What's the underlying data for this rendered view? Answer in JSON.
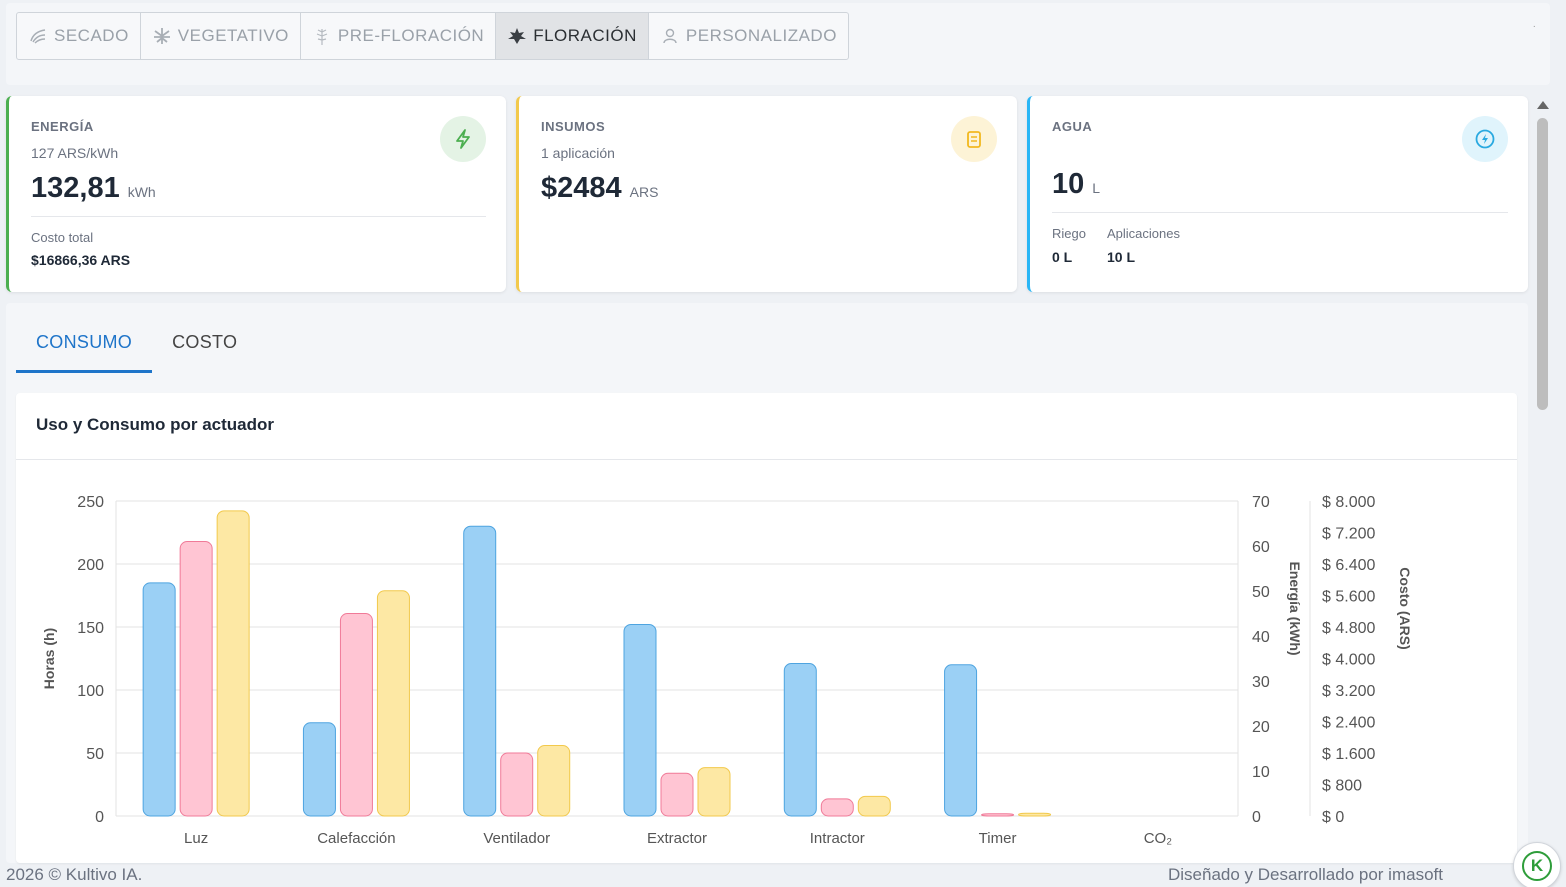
{
  "stages": [
    {
      "label": "SECADO",
      "icon": "drying-icon",
      "active": false
    },
    {
      "label": "VEGETATIVO",
      "icon": "leaf-icon",
      "active": false
    },
    {
      "label": "PRE-FLORACIÓN",
      "icon": "sprout-icon",
      "active": false
    },
    {
      "label": "FLORACIÓN",
      "icon": "flower-icon",
      "active": true
    },
    {
      "label": "PERSONALIZADO",
      "icon": "user-icon",
      "active": false
    }
  ],
  "stage_dot": "·",
  "cards": {
    "energy": {
      "label": "ENERGÍA",
      "rate": "127 ARS/kWh",
      "value": "132,81",
      "unit": "kWh",
      "total_label": "Costo total",
      "total_value": "$16866,36 ARS",
      "accent": "#4caf50"
    },
    "supplies": {
      "label": "INSUMOS",
      "sub": "1 aplicación",
      "value": "$2484",
      "unit": "ARS",
      "accent": "#f2c94c"
    },
    "water": {
      "label": "AGUA",
      "value": "10",
      "unit": "L",
      "riego_label": "Riego",
      "riego_value": "0 L",
      "apps_label": "Aplicaciones",
      "apps_value": "10 L",
      "accent": "#29b6f6"
    }
  },
  "main_tabs": [
    {
      "label": "CONSUMO",
      "active": true
    },
    {
      "label": "COSTO",
      "active": false
    }
  ],
  "chart_title": "Uso y Consumo por actuador",
  "chart_data": {
    "type": "bar",
    "title": "Uso y Consumo por actuador",
    "categories": [
      "Luz",
      "Calefacción",
      "Ventilador",
      "Extractor",
      "Intractor",
      "Timer",
      "CO₂"
    ],
    "series": [
      {
        "axis": "hours",
        "values": [
          185,
          74,
          230,
          152,
          121,
          120,
          0
        ],
        "color": "#9bd0f5",
        "stroke": "#4ea4e0"
      },
      {
        "axis": "energy",
        "values": [
          61,
          45,
          14,
          9.5,
          3.8,
          0.5,
          0
        ],
        "color": "#ffc5d3",
        "stroke": "#f07a98"
      },
      {
        "axis": "cost",
        "values": [
          7750,
          5720,
          1790,
          1230,
          500,
          70,
          0
        ],
        "color": "#fde8a4",
        "stroke": "#f2c94c"
      }
    ],
    "axes": {
      "hours": {
        "label": "Horas (h)",
        "ticks": [
          "250",
          "200",
          "150",
          "100",
          "50",
          "0"
        ],
        "max": 250
      },
      "energy": {
        "label": "Energía (kWh)",
        "ticks": [
          "70",
          "60",
          "50",
          "40",
          "30",
          "20",
          "10",
          "0"
        ],
        "max": 70
      },
      "cost": {
        "label": "Costo (ARS)",
        "ticks": [
          "$ 8.000",
          "$ 7.200",
          "$ 6.400",
          "$ 5.600",
          "$ 4.800",
          "$ 4.000",
          "$ 3.200",
          "$ 2.400",
          "$ 1.600",
          "$ 800",
          "$ 0"
        ],
        "max": 8000
      }
    },
    "grid": true
  },
  "footer": {
    "copyright": "2026 © Kultivo IA.",
    "credits": "Diseñado y Desarrollado por imasoft",
    "fab_letter": "K"
  }
}
